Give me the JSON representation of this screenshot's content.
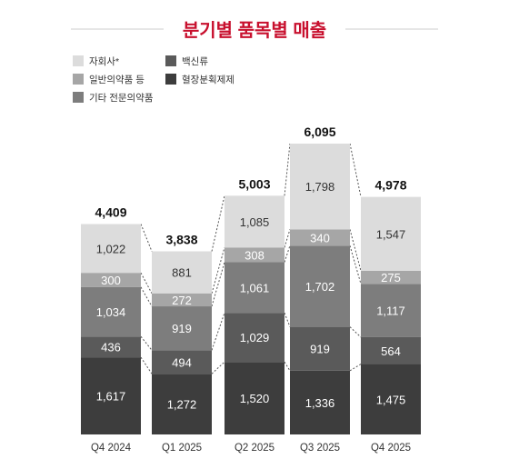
{
  "chart_data": {
    "type": "bar",
    "stacked": true,
    "title": "분기별 품목별 매출",
    "categories": [
      "Q4 2024",
      "Q1 2025",
      "Q2 2025",
      "Q3 2025",
      "Q4 2025"
    ],
    "totals": [
      "4,409",
      "3,838",
      "5,003",
      "6,095",
      "4,978"
    ],
    "series": [
      {
        "name": "혈장분획제제",
        "color": "#3d3d3d",
        "values": [
          1617,
          1272,
          1520,
          1336,
          1475
        ],
        "labels": [
          "1,617",
          "1,272",
          "1,520",
          "1,336",
          "1,475"
        ]
      },
      {
        "name": "백신류",
        "color": "#5a5a5a",
        "values": [
          436,
          494,
          1029,
          919,
          564
        ],
        "labels": [
          "436",
          "494",
          "1,029",
          "919",
          "564"
        ]
      },
      {
        "name": "기타 전문의약품",
        "color": "#7d7d7d",
        "values": [
          1034,
          919,
          1061,
          1702,
          1117
        ],
        "labels": [
          "1,034",
          "919",
          "1,061",
          "1,702",
          "1,117"
        ]
      },
      {
        "name": "일반의약품 등",
        "color": "#a6a6a6",
        "values": [
          300,
          272,
          308,
          340,
          275
        ],
        "labels": [
          "300",
          "272",
          "308",
          "340",
          "275"
        ]
      },
      {
        "name": "자회사*",
        "color": "#dcdcdc",
        "values": [
          1022,
          881,
          1085,
          1798,
          1547
        ],
        "labels": [
          "1,022",
          "881",
          "1,085",
          "1,798",
          "1,547"
        ]
      }
    ],
    "legend": [
      {
        "name": "자회사*",
        "color": "#dcdcdc"
      },
      {
        "name": "백신류",
        "color": "#5a5a5a"
      },
      {
        "name": "일반의약품 등",
        "color": "#a6a6a6"
      },
      {
        "name": "혈장분획제제",
        "color": "#3d3d3d"
      },
      {
        "name": "기타 전문의약품",
        "color": "#7d7d7d"
      }
    ],
    "accent_color": "#c8102e",
    "legend_placement": "top-left",
    "grid": false
  }
}
